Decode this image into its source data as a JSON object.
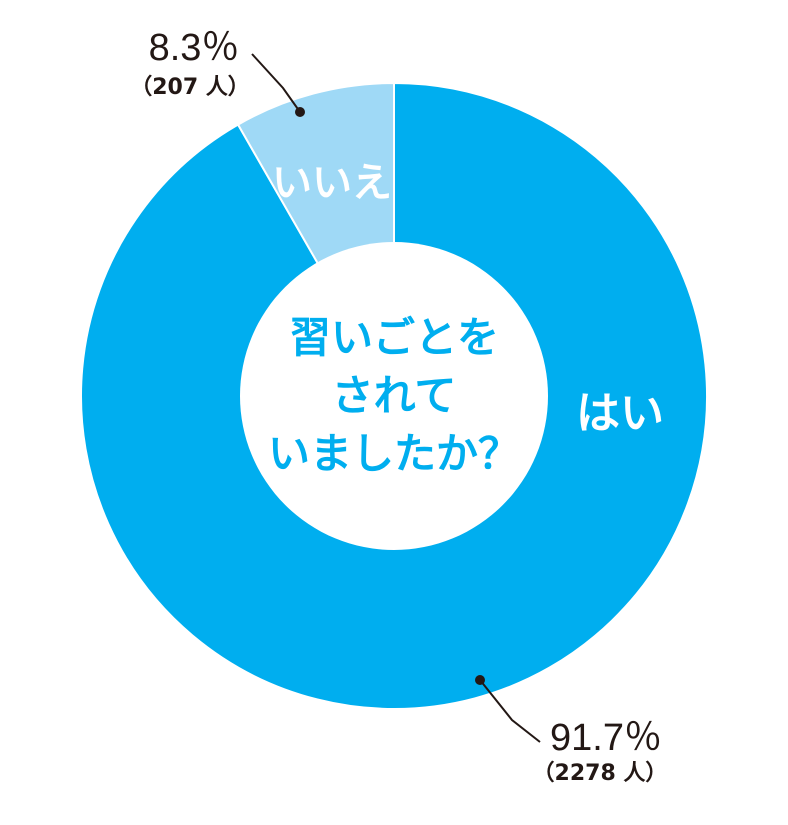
{
  "chart_data": {
    "type": "pie",
    "variant": "donut",
    "center_text": [
      "習いごとを",
      "されて",
      "いましたか？"
    ],
    "slices": [
      {
        "label": "はい",
        "percent": 91.7,
        "percent_text": "91.7％",
        "count_text": "（2278 人）",
        "color": "#00aeef"
      },
      {
        "label": "いいえ",
        "percent": 8.3,
        "percent_text": "8.3％",
        "count_text": "（207 人）",
        "color": "#9fd9f6"
      }
    ]
  },
  "colors": {
    "center_text": "#00aeef",
    "annotation_text": "#231815",
    "slice_text": "#ffffff",
    "background": "#ffffff"
  }
}
